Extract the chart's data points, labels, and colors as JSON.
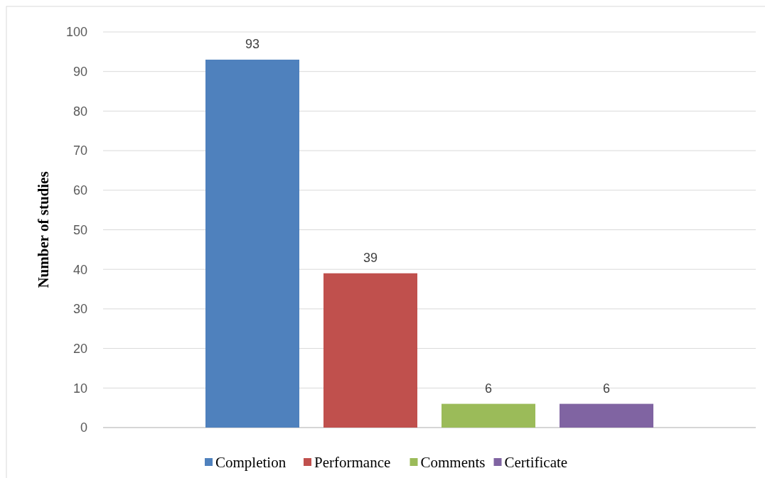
{
  "chart_data": {
    "type": "bar",
    "ylabel": "Number of studies",
    "categories": [
      null
    ],
    "series": [
      {
        "name": "Completion",
        "color": "#4f81bd",
        "values": [
          93
        ]
      },
      {
        "name": "Performance",
        "color": "#c0504d",
        "values": [
          39
        ]
      },
      {
        "name": "Comments",
        "color": "#9bbb59",
        "values": [
          6
        ]
      },
      {
        "name": "Certificate",
        "color": "#8064a2",
        "values": [
          6
        ]
      }
    ],
    "ylim": [
      0,
      100
    ],
    "yticks": [
      0,
      10,
      20,
      30,
      40,
      50,
      60,
      70,
      80,
      90,
      100
    ],
    "grid": "y",
    "legend": "bottom",
    "data_labels": true
  }
}
